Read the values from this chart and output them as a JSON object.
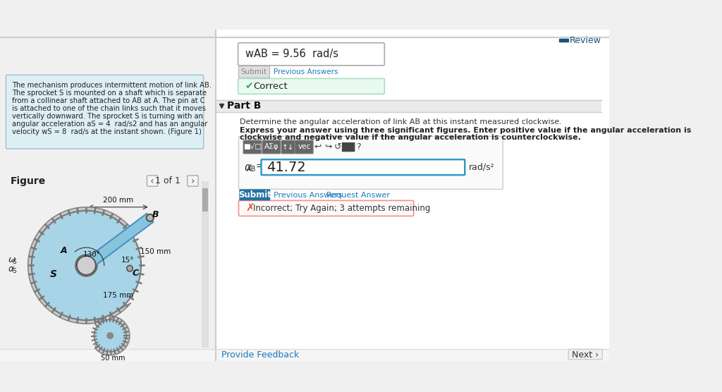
{
  "bg_color": "#f0f0f0",
  "main_bg": "#ffffff",
  "left_panel_bg": "#deeef5",
  "left_panel_border": "#b0cfe0",
  "review_color": "#1a5276",
  "review_icon_color": "#1a5276",
  "problem_text_lines": [
    "The mechanism produces intermittent motion of link AB.",
    "The sprocket S is mounted on a shaft which is separate",
    "from a collinear shaft attached to AB at A. The pin at C",
    "is attached to one of the chain links such that it moves",
    "vertically downward. The sprocket S is turning with an",
    "angular acceleration aS = 4  rad/s2 and has an angular",
    "velocity wS = 8  rad/s at the instant shown. (Figure 1)"
  ],
  "answer_box_text": "wAB = 9.56  rad/s",
  "correct_box_bg": "#eafaf1",
  "correct_box_border": "#a9dfbf",
  "correct_icon_color": "#27ae60",
  "correct_text": "Correct",
  "part_b_text": "Part B",
  "part_b_bg": "#ebebeb",
  "determine_text": "Determine the angular acceleration of link AB at this instant measured clockwise.",
  "express_line1": "Express your answer using three significant figures. Enter positive value if the angular acceleration is",
  "express_line2": "clockwise and negative value if the angular acceleration is counterclockwise.",
  "alpha_value": "41.72",
  "alpha_unit": "rad/s²",
  "submit_btn2_color": "#2471a3",
  "submit_btn2_text": "Submit",
  "incorrect_box_bg": "#fef9f9",
  "incorrect_box_border": "#f1948a",
  "incorrect_icon_color": "#e74c3c",
  "incorrect_text": "Incorrect; Try Again; 3 attempts remaining",
  "figure_label": "Figure",
  "figure_nav": "1 of 1",
  "provide_feedback_color": "#1a7bbf",
  "prev_answers_color": "#1a7bbf",
  "request_ans_color": "#1a7bbf"
}
